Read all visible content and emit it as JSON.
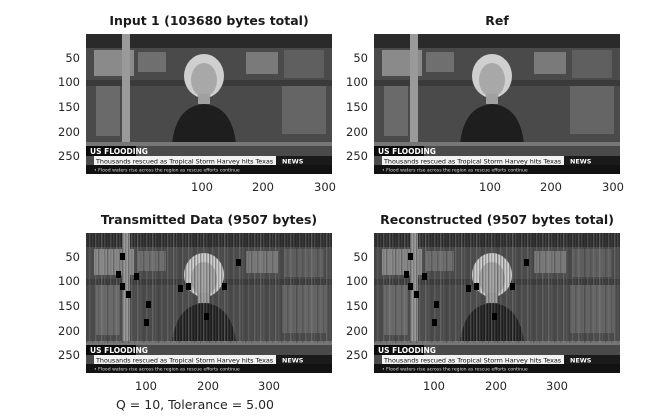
{
  "panels": [
    {
      "id": "input",
      "title": "Input  1 (103680 bytes total)",
      "style": "clean"
    },
    {
      "id": "ref",
      "title": "Ref",
      "style": "clean"
    },
    {
      "id": "transmitted",
      "title": "Transmitted Data (9507 bytes)",
      "style": "blocky"
    },
    {
      "id": "reconstructed",
      "title": "Reconstructed (9507 bytes total)",
      "style": "blocky"
    }
  ],
  "y_ticks": [
    "50",
    "100",
    "150",
    "200",
    "250"
  ],
  "x_ticks": [
    "100",
    "200",
    "300"
  ],
  "image_text": {
    "banner_heading": "US FLOODING",
    "ticker": "Thousands rescued as Tropical Storm Harvey hits Texas",
    "network_logo": "NEWS",
    "ticker_small": "• Flood waters rise across the region as rescue efforts continue"
  },
  "caption": "Q = 10, Tolerance = 5.00"
}
